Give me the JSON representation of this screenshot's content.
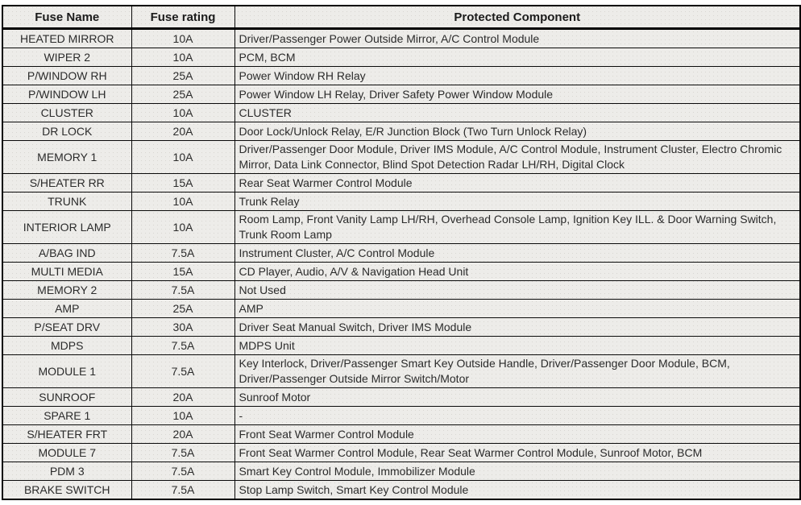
{
  "table": {
    "headers": [
      "Fuse Name",
      "Fuse rating",
      "Protected Component"
    ],
    "rows": [
      {
        "name": "HEATED MIRROR",
        "rating": "10A",
        "component": "Driver/Passenger Power Outside Mirror, A/C Control Module"
      },
      {
        "name": "WIPER 2",
        "rating": "10A",
        "component": "PCM, BCM"
      },
      {
        "name": "P/WINDOW RH",
        "rating": "25A",
        "component": "Power Window RH Relay"
      },
      {
        "name": "P/WINDOW LH",
        "rating": "25A",
        "component": "Power Window LH Relay, Driver Safety Power Window Module"
      },
      {
        "name": "CLUSTER",
        "rating": "10A",
        "component": "CLUSTER"
      },
      {
        "name": "DR LOCK",
        "rating": "20A",
        "component": "Door Lock/Unlock Relay, E/R Junction Block (Two Turn Unlock Relay)"
      },
      {
        "name": "MEMORY 1",
        "rating": "10A",
        "component": "Driver/Passenger Door Module, Driver IMS Module, A/C Control Module, Instrument Cluster, Electro Chromic Mirror, Data Link Connector, Blind Spot Detection Radar LH/RH, Digital Clock"
      },
      {
        "name": "S/HEATER RR",
        "rating": "15A",
        "component": "Rear Seat Warmer Control Module"
      },
      {
        "name": "TRUNK",
        "rating": "10A",
        "component": "Trunk Relay"
      },
      {
        "name": "INTERIOR LAMP",
        "rating": "10A",
        "component": "Room Lamp, Front Vanity Lamp LH/RH, Overhead Console Lamp, Ignition Key ILL. & Door Warning Switch, Trunk Room Lamp"
      },
      {
        "name": "A/BAG IND",
        "rating": "7.5A",
        "component": "Instrument Cluster, A/C Control Module"
      },
      {
        "name": "MULTI MEDIA",
        "rating": "15A",
        "component": "CD Player, Audio, A/V & Navigation Head Unit"
      },
      {
        "name": "MEMORY 2",
        "rating": "7.5A",
        "component": "Not Used"
      },
      {
        "name": "AMP",
        "rating": "25A",
        "component": "AMP"
      },
      {
        "name": "P/SEAT DRV",
        "rating": "30A",
        "component": "Driver Seat Manual Switch, Driver IMS Module"
      },
      {
        "name": "MDPS",
        "rating": "7.5A",
        "component": "MDPS Unit"
      },
      {
        "name": "MODULE 1",
        "rating": "7.5A",
        "component": "Key Interlock, Driver/Passenger Smart Key Outside Handle, Driver/Passenger Door Module, BCM, Driver/Passenger Outside Mirror Switch/Motor"
      },
      {
        "name": "SUNROOF",
        "rating": "20A",
        "component": "Sunroof Motor"
      },
      {
        "name": "SPARE 1",
        "rating": "10A",
        "component": "-"
      },
      {
        "name": "S/HEATER FRT",
        "rating": "20A",
        "component": "Front Seat Warmer Control Module"
      },
      {
        "name": "MODULE 7",
        "rating": "7.5A",
        "component": "Front Seat Warmer Control Module, Rear Seat Warmer Control Module, Sunroof Motor, BCM"
      },
      {
        "name": "PDM 3",
        "rating": "7.5A",
        "component": "Smart Key Control Module, Immobilizer Module"
      },
      {
        "name": "BRAKE SWITCH",
        "rating": "7.5A",
        "component": "Stop Lamp Switch, Smart Key Control Module"
      }
    ]
  },
  "colors": {
    "table_background": "#edece9",
    "border": "#0a0a0a",
    "text": "#2b2b2b",
    "page_background": "#ffffff"
  }
}
